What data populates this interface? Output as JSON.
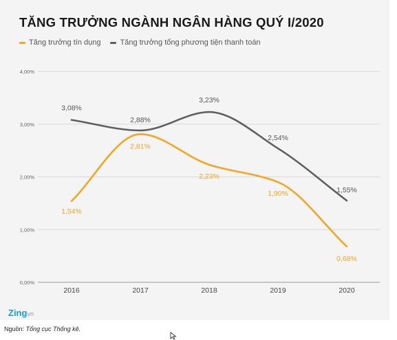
{
  "title": "TĂNG TRƯỞNG NGÀNH NGÂN HÀNG QUÝ I/2020",
  "colors": {
    "background": "#f4f4f4",
    "credit": "#f5a623",
    "payment": "#5f5f5f",
    "grid": "#d8d8d8",
    "brand": "#1a9ad6"
  },
  "chart_data": {
    "type": "line",
    "title": "TĂNG TRƯỞNG NGÀNH NGÂN HÀNG QUÝ I/2020",
    "categories": [
      "2016",
      "2017",
      "2018",
      "2019",
      "2020"
    ],
    "series": [
      {
        "name": "Tăng trưởng tín dụng",
        "color": "#f5a623",
        "values": [
          1.54,
          2.81,
          2.23,
          1.9,
          0.68
        ],
        "labels": [
          "1,54%",
          "2,81%",
          "2,23%",
          "1,90%",
          "0,68%"
        ]
      },
      {
        "name": "Tăng trưởng tổng phương tiện thanh toán",
        "color": "#5f5f5f",
        "values": [
          3.08,
          2.88,
          3.23,
          2.54,
          1.55
        ],
        "labels": [
          "3,08%",
          "2,88%",
          "3,23%",
          "2,54%",
          "1,55%"
        ]
      }
    ],
    "y_ticks": [
      0,
      1,
      2,
      3,
      4
    ],
    "y_tick_labels": [
      "0,00%",
      "1,00%",
      "2,00%",
      "3,00%",
      "4,00%"
    ],
    "ylim": [
      0,
      4
    ],
    "grid": true,
    "smooth": true,
    "legend_position": "top-left"
  },
  "brand": {
    "name": "Zing",
    "suffix": "vn"
  },
  "source": {
    "prefix": "Nguồn: ",
    "text": "Tổng cục Thống kê."
  }
}
